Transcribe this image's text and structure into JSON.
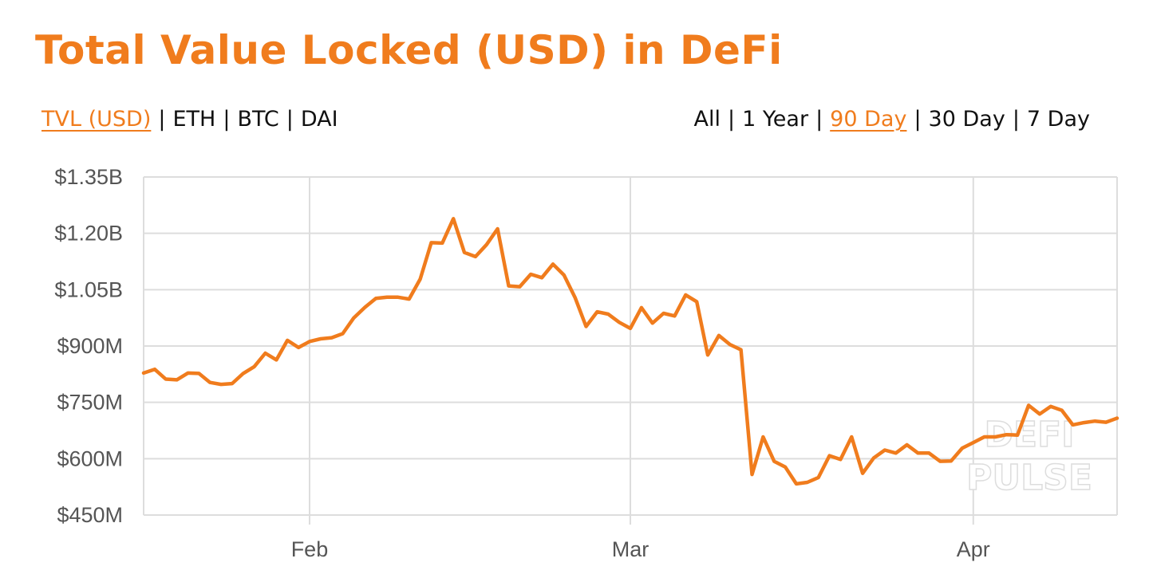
{
  "header": {
    "title": "Total Value Locked (USD) in DeFi"
  },
  "metric_options": [
    {
      "label": "TVL (USD)",
      "active": true
    },
    {
      "label": "ETH",
      "active": false
    },
    {
      "label": "BTC",
      "active": false
    },
    {
      "label": "DAI",
      "active": false
    }
  ],
  "range_options": [
    {
      "label": "All",
      "active": false
    },
    {
      "label": "1 Year",
      "active": false
    },
    {
      "label": "90 Day",
      "active": true
    },
    {
      "label": "30 Day",
      "active": false
    },
    {
      "label": "7 Day",
      "active": false
    }
  ],
  "separator": "|",
  "watermark": {
    "line1": "DEFI",
    "line2": "PULSE"
  },
  "colors": {
    "accent": "#f07c1d",
    "grid": "#dddddd",
    "text": "#111111",
    "tick": "#555555"
  },
  "chart_data": {
    "type": "line",
    "title": "Total Value Locked (USD) in DeFi",
    "xlabel": "",
    "ylabel": "",
    "x_start": "2020-01-17",
    "x_step_days": 1,
    "x_ticks": [
      {
        "date": "2020-02-01",
        "label": "Feb"
      },
      {
        "date": "2020-03-01",
        "label": "Mar"
      },
      {
        "date": "2020-04-01",
        "label": "Apr"
      }
    ],
    "y_ticks": [
      {
        "value": 450,
        "label": "$450M"
      },
      {
        "value": 600,
        "label": "$600M"
      },
      {
        "value": 750,
        "label": "$750M"
      },
      {
        "value": 900,
        "label": "$900M"
      },
      {
        "value": 1050,
        "label": "$1.05B"
      },
      {
        "value": 1200,
        "label": "$1.20B"
      },
      {
        "value": 1350,
        "label": "$1.35B"
      }
    ],
    "ylim": [
      450,
      1350
    ],
    "grid": true,
    "legend": "none",
    "series": [
      {
        "unit": "USD millions",
        "values": [
          828,
          838,
          812,
          810,
          828,
          827,
          803,
          798,
          800,
          827,
          845,
          881,
          863,
          915,
          896,
          912,
          919,
          922,
          933,
          975,
          1003,
          1027,
          1030,
          1030,
          1025,
          1078,
          1175,
          1174,
          1239,
          1149,
          1138,
          1170,
          1212,
          1060,
          1058,
          1091,
          1082,
          1118,
          1089,
          1029,
          952,
          991,
          985,
          963,
          947,
          1002,
          961,
          987,
          980,
          1036,
          1018,
          876,
          928,
          904,
          890,
          558,
          658,
          593,
          578,
          533,
          537,
          550,
          608,
          598,
          658,
          561,
          602,
          623,
          615,
          637,
          615,
          615,
          593,
          594,
          628,
          643,
          658,
          658,
          664,
          663,
          742,
          719,
          739,
          729,
          690,
          696,
          700,
          697,
          708
        ]
      }
    ]
  }
}
